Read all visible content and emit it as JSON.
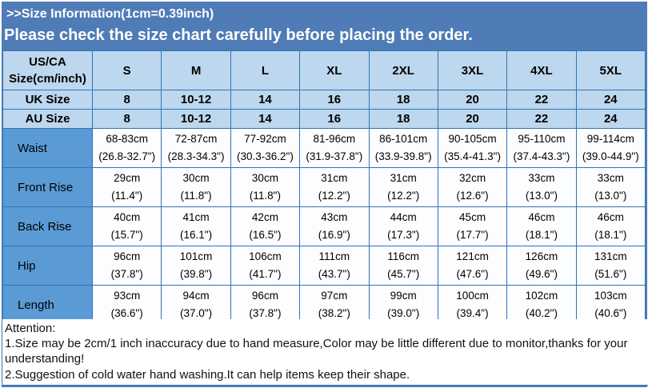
{
  "colors": {
    "banner_blue": "#4f7cb7",
    "header_cell_blue": "#bdd7ee",
    "label_cell_blue": "#5b9bd5",
    "border_blue": "#2e75b6",
    "banner_text": "#ffffff",
    "cell_text": "#000000"
  },
  "banner": {
    "title": ">>Size Information(1cm=0.39inch)",
    "subtitle": "Please check the size chart carefully before placing the order."
  },
  "table": {
    "corner_label": "US/CA\nSize(cm/inch)",
    "size_headers": [
      "S",
      "M",
      "L",
      "XL",
      "2XL",
      "3XL",
      "4XL",
      "5XL"
    ],
    "uk": {
      "label": "UK Size",
      "values": [
        "8",
        "10-12",
        "14",
        "16",
        "18",
        "20",
        "22",
        "24"
      ]
    },
    "au": {
      "label": "AU Size",
      "values": [
        "8",
        "10-12",
        "14",
        "16",
        "18",
        "20",
        "22",
        "24"
      ]
    },
    "rows": [
      {
        "label": "Waist",
        "values": [
          "68-83cm\n(26.8-32.7\")",
          "72-87cm\n(28.3-34.3\")",
          "77-92cm\n(30.3-36.2\")",
          "81-96cm\n(31.9-37.8\")",
          "86-101cm\n(33.9-39.8\")",
          "90-105cm\n(35.4-41.3\")",
          "95-110cm\n(37.4-43.3\")",
          "99-114cm\n(39.0-44.9\")"
        ]
      },
      {
        "label": "Front Rise",
        "values": [
          "29cm\n(11.4\")",
          "30cm\n(11.8\")",
          "30cm\n(11.8\")",
          "31cm\n(12.2\")",
          "31cm\n(12.2\")",
          "32cm\n(12.6\")",
          "33cm\n(13.0\")",
          "33cm\n(13.0\")"
        ]
      },
      {
        "label": "Back Rise",
        "values": [
          "40cm\n(15.7\")",
          "41cm\n(16.1\")",
          "42cm\n(16.5\")",
          "43cm\n(16.9\")",
          "44cm\n(17.3\")",
          "45cm\n(17.7\")",
          "46cm\n(18.1\")",
          "46cm\n(18.1\")"
        ]
      },
      {
        "label": "Hip",
        "values": [
          "96cm\n(37.8\")",
          "101cm\n(39.8\")",
          "106cm\n(41.7\")",
          "111cm\n(43.7\")",
          "116cm\n(45.7\")",
          "121cm\n(47.6\")",
          "126cm\n(49.6\")",
          "131cm\n(51.6\")"
        ]
      },
      {
        "label": "Length",
        "values": [
          "93cm\n(36.6\")",
          "94cm\n(37.0\")",
          "96cm\n(37.8\")",
          "97cm\n(38.2\")",
          "99cm\n(39.0\")",
          "100cm\n(39.4\")",
          "102cm\n(40.2\")",
          "103cm\n(40.6\")"
        ]
      }
    ]
  },
  "attention": {
    "heading": "Attention:",
    "note1": "1.Size may be 2cm/1 inch inaccuracy due to hand measure,Color may be little different due to monitor,thanks for your understanding!",
    "note2": "2.Suggestion of cold water hand washing.It can help items keep their shape."
  }
}
